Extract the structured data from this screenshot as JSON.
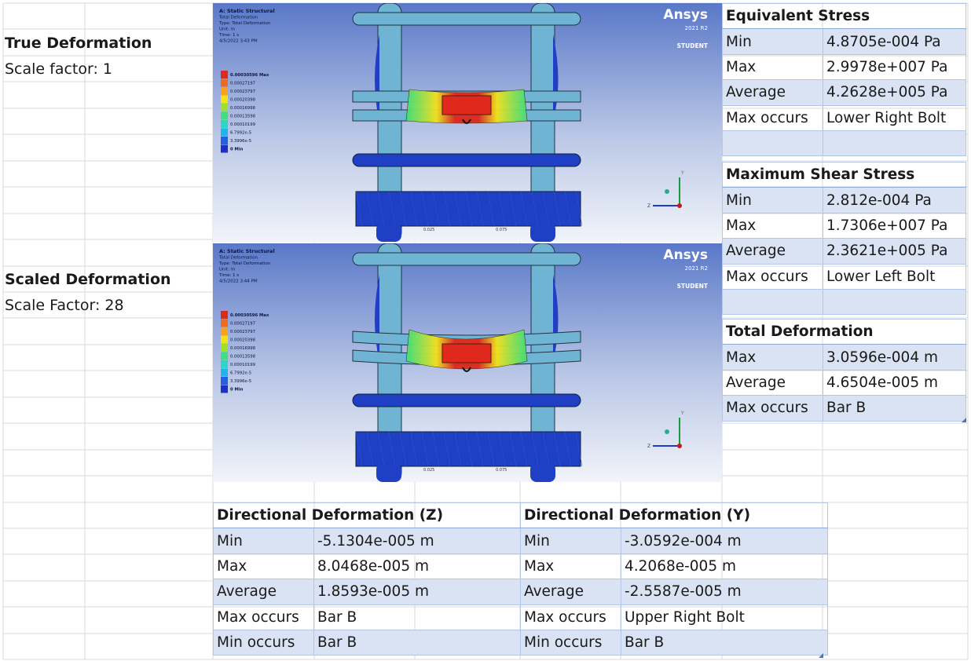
{
  "left_labels": {
    "true_deformation": "True Deformation",
    "scale_factor_true": "Scale factor: 1",
    "scaled_deformation": "Scaled Deformation",
    "scale_factor_scaled": "Scale Factor: 28"
  },
  "screenshots": [
    {
      "header_lines": [
        "A: Static Structural",
        "Total Deformation",
        "Type: Total Deformation",
        "Unit: m",
        "Time: 1 s",
        "4/5/2022 3:43 PM"
      ],
      "legend": [
        "0.00030596 Max",
        "0.00027197",
        "0.00023797",
        "0.00020398",
        "0.00016998",
        "0.00013598",
        "0.00010199",
        "6.7992e-5",
        "3.3996e-5",
        "0 Min"
      ],
      "brand": "Ansys",
      "version": "2021 R2",
      "edition": "STUDENT",
      "scale_ticks": [
        "0.025",
        "0.075"
      ]
    },
    {
      "header_lines": [
        "A: Static Structural",
        "Total Deformation",
        "Type: Total Deformation",
        "Unit: m",
        "Time: 1 s",
        "4/5/2022 3:44 PM"
      ],
      "legend": [
        "0.00030596 Max",
        "0.00027197",
        "0.00023797",
        "0.00020398",
        "0.00016998",
        "0.00013598",
        "0.00010199",
        "6.7992e-5",
        "3.3996e-5",
        "0 Min"
      ],
      "brand": "Ansys",
      "version": "2021 R2",
      "edition": "STUDENT",
      "scale_ticks": [
        "0.025",
        "0.075"
      ]
    }
  ],
  "legend_colors": [
    "#e0281c",
    "#f06a1a",
    "#f7a21c",
    "#f2e21a",
    "#9be22a",
    "#3ee07a",
    "#2ad8c8",
    "#22b2ee",
    "#2260e6",
    "#1a2fcf"
  ],
  "axis_labels": {
    "y": "Y",
    "z": "Z"
  },
  "equivalent_stress": {
    "title": "Equivalent Stress",
    "rows": [
      [
        "Min",
        "4.8705e-004 Pa"
      ],
      [
        "Max",
        "2.9978e+007 Pa"
      ],
      [
        "Average",
        "4.2628e+005 Pa"
      ],
      [
        "Max occurs",
        "Lower Right Bolt"
      ]
    ]
  },
  "maximum_shear_stress": {
    "title": "Maximum Shear Stress",
    "rows": [
      [
        "Min",
        "2.812e-004 Pa"
      ],
      [
        "Max",
        "1.7306e+007 Pa"
      ],
      [
        "Average",
        "2.3621e+005 Pa"
      ],
      [
        "Max occurs",
        "Lower Left Bolt"
      ]
    ]
  },
  "total_deformation": {
    "title": "Total Deformation",
    "rows": [
      [
        "Max",
        "3.0596e-004 m"
      ],
      [
        "Average",
        "4.6504e-005 m"
      ],
      [
        "Max occurs",
        "Bar B"
      ]
    ]
  },
  "directional_z": {
    "title": "Directional Deformation (Z)",
    "rows": [
      [
        "Min",
        "-5.1304e-005 m"
      ],
      [
        "Max",
        "8.0468e-005 m"
      ],
      [
        "Average",
        "1.8593e-005 m"
      ],
      [
        "Max occurs",
        "Bar B"
      ],
      [
        "Min occurs",
        "Bar B"
      ]
    ]
  },
  "directional_y": {
    "title": "Directional Deformation (Y)",
    "rows": [
      [
        "Min",
        "-3.0592e-004 m"
      ],
      [
        "Max",
        "4.2068e-005 m"
      ],
      [
        "Average",
        "-2.5587e-005 m"
      ],
      [
        "Max occurs",
        "Upper Right Bolt"
      ],
      [
        "Min occurs",
        "Bar B"
      ]
    ]
  },
  "colors": {
    "table_band": "#dae3f3",
    "table_border": "#b4c6e7",
    "grid_line": "#d9d9d9",
    "model_blue": "#1f3fc4",
    "model_light": "#6fb4d2"
  }
}
